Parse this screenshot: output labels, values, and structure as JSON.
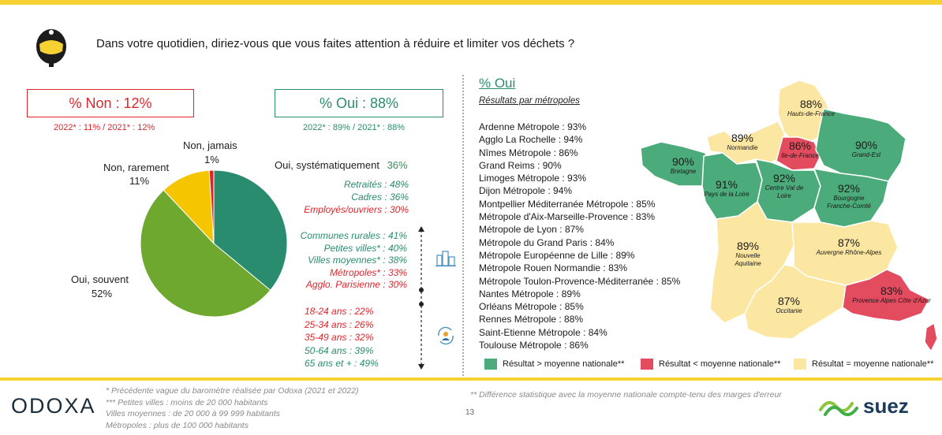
{
  "header": {
    "question": "Dans votre quotidien, diriez-vous que vous faites attention à réduire et limiter vos déchets ?"
  },
  "summary": {
    "non_box": "% Non : 12%",
    "non_prev": "2022* : 11% / 2021* : 12%",
    "oui_box": "% Oui : 88%",
    "oui_prev": "2022* : 89% / 2021* : 88%"
  },
  "pie_labels": {
    "jamais_label": "Non, jamais",
    "jamais_value": "1%",
    "rarement_label": "Non, rarement",
    "rarement_value": "11%",
    "souvent_label": "Oui, souvent",
    "souvent_value": "52%",
    "syst_label": "Oui, systématiquement",
    "syst_value": "36%"
  },
  "breakdowns": {
    "csp": [
      "Retraités : 48%",
      "Cadres : 36%",
      "Employés/ouvriers : 30%"
    ],
    "agglo": [
      "Communes rurales : 41%",
      "Petites villes* : 40%",
      "Villes moyennes* : 38%",
      "Métropoles* : 33%",
      "Agglo. Parisienne : 30%"
    ],
    "age": [
      "18-24 ans : 22%",
      "25-34 ans : 26%",
      "35-49 ans : 32%",
      "50-64 ans : 39%",
      "65 ans et + : 49%"
    ]
  },
  "metropoles": {
    "title": "% Oui",
    "subtitle": "Résultats par métropoles",
    "items": [
      "Ardenne Métropole : 93%",
      "Agglo La Rochelle : 94%",
      "Nîmes Métropole : 86%",
      "Grand Reims : 90%",
      "Limoges Métropole : 93%",
      "Dijon Métropole : 94%",
      "Montpellier Méditerranée Métropole : 85%",
      "Métropole d'Aix-Marseille-Provence : 83%",
      "Métropole de Lyon : 87%",
      "Métropole du Grand Paris : 84%",
      "Métropole Européenne de Lille : 89%",
      "Métropole Rouen Normandie : 83%",
      "Métropole Toulon-Provence-Méditerranée : 85%",
      "Nantes Métropole : 89%",
      "Orléans Métropole : 85%",
      "Rennes Métropole : 88%",
      "Saint-Etienne Métropole : 84%",
      "Toulouse Métropole : 86%"
    ]
  },
  "regions": [
    {
      "pct": "88%",
      "name": "Hauts-de-France"
    },
    {
      "pct": "89%",
      "name": "Normandie"
    },
    {
      "pct": "86%",
      "name": "Ile-de-France"
    },
    {
      "pct": "90%",
      "name": "Grand-Est"
    },
    {
      "pct": "90%",
      "name": "Bretagne"
    },
    {
      "pct": "91%",
      "name": "Pays de la Loire"
    },
    {
      "pct": "92%",
      "name": "Centre Val de Loire"
    },
    {
      "pct": "92%",
      "name": "Bourgogne Franche-Comté"
    },
    {
      "pct": "89%",
      "name": "Nouvelle Aquitaine"
    },
    {
      "pct": "87%",
      "name": "Auvergne Rhône-Alpes"
    },
    {
      "pct": "87%",
      "name": "Occitanie"
    },
    {
      "pct": "83%",
      "name": "Provence Alpes Côte d'Azur"
    }
  ],
  "map_legend": {
    "above": "Résultat > moyenne nationale**",
    "below": "Résultat < moyenne nationale**",
    "equal": "Résultat = moyenne nationale**"
  },
  "footer": {
    "note1": "* Précédente vague du baromètre réalisée par Odoxa (2021 et 2022)",
    "note2": "*** Petites villes : moins de 20 000 habitants",
    "note3": "Villes moyennes : de 20 000 à 99 999 habitants",
    "note4": "Métropoles : plus de 100 000 habitants",
    "note5": "** Différence statistique avec la moyenne nationale compte-tenu des marges d'erreur",
    "page": "13",
    "brand_left": "ODOXA",
    "brand_right": "suez"
  },
  "colors": {
    "above": "#4bab7a",
    "below": "#e34b5f",
    "equal": "#fbe6a2",
    "accent_yellow": "#f5d232",
    "non_red": "#e0242b",
    "oui_green": "#2a8c6e"
  },
  "chart_data": {
    "type": "pie",
    "title": "",
    "slices": [
      {
        "label": "Oui, systématiquement",
        "value": 36,
        "color": "#2a8c6e"
      },
      {
        "label": "Oui, souvent",
        "value": 52,
        "color": "#6fa82e"
      },
      {
        "label": "Non, rarement",
        "value": 11,
        "color": "#f5c600"
      },
      {
        "label": "Non, jamais",
        "value": 1,
        "color": "#e0242b"
      }
    ]
  }
}
